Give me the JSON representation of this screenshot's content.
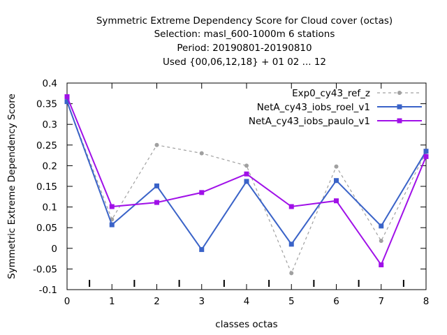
{
  "chart_data": {
    "type": "line",
    "title_lines": [
      "Symmetric Extreme Dependency Score  for Cloud cover (octas)",
      "Selection: masl_600-1000m      6 stations",
      "Period: 20190801-20190810",
      "Used {00,06,12,18} + 01 02 ... 12"
    ],
    "xlabel": "classes octas",
    "ylabel": "Symmetric Extreme Dependency Score",
    "x": [
      0,
      1,
      2,
      3,
      4,
      5,
      6,
      7,
      8
    ],
    "xlim": [
      0,
      8
    ],
    "ylim": [
      -0.1,
      0.4
    ],
    "x_ticks": [
      "0",
      "1",
      "2",
      "3",
      "4",
      "5",
      "6",
      "7",
      "8"
    ],
    "y_ticks": [
      "-0.1",
      "-0.05",
      "0",
      "0.05",
      "0.1",
      "0.15",
      "0.2",
      "0.25",
      "0.3",
      "0.35",
      "0.4"
    ],
    "grid": false,
    "legend_placement": "top-right",
    "series": [
      {
        "name": "Exp0_cy43_ref_z",
        "color": "#a0a0a0",
        "style": "dashed",
        "marker": "circle",
        "values": [
          0.355,
          0.07,
          0.25,
          0.23,
          0.2,
          -0.06,
          0.198,
          0.018,
          0.233
        ]
      },
      {
        "name": "NetA_cy43_iobs_roel_v1",
        "color": "#3a63c8",
        "style": "solid",
        "marker": "square",
        "values": [
          0.355,
          0.057,
          0.151,
          -0.003,
          0.162,
          0.01,
          0.164,
          0.054,
          0.235
        ]
      },
      {
        "name": "NetA_cy43_iobs_paulo_v1",
        "color": "#a010e8",
        "style": "solid",
        "marker": "square",
        "values": [
          0.367,
          0.101,
          0.111,
          0.135,
          0.18,
          0.101,
          0.115,
          -0.04,
          0.222
        ]
      }
    ]
  }
}
